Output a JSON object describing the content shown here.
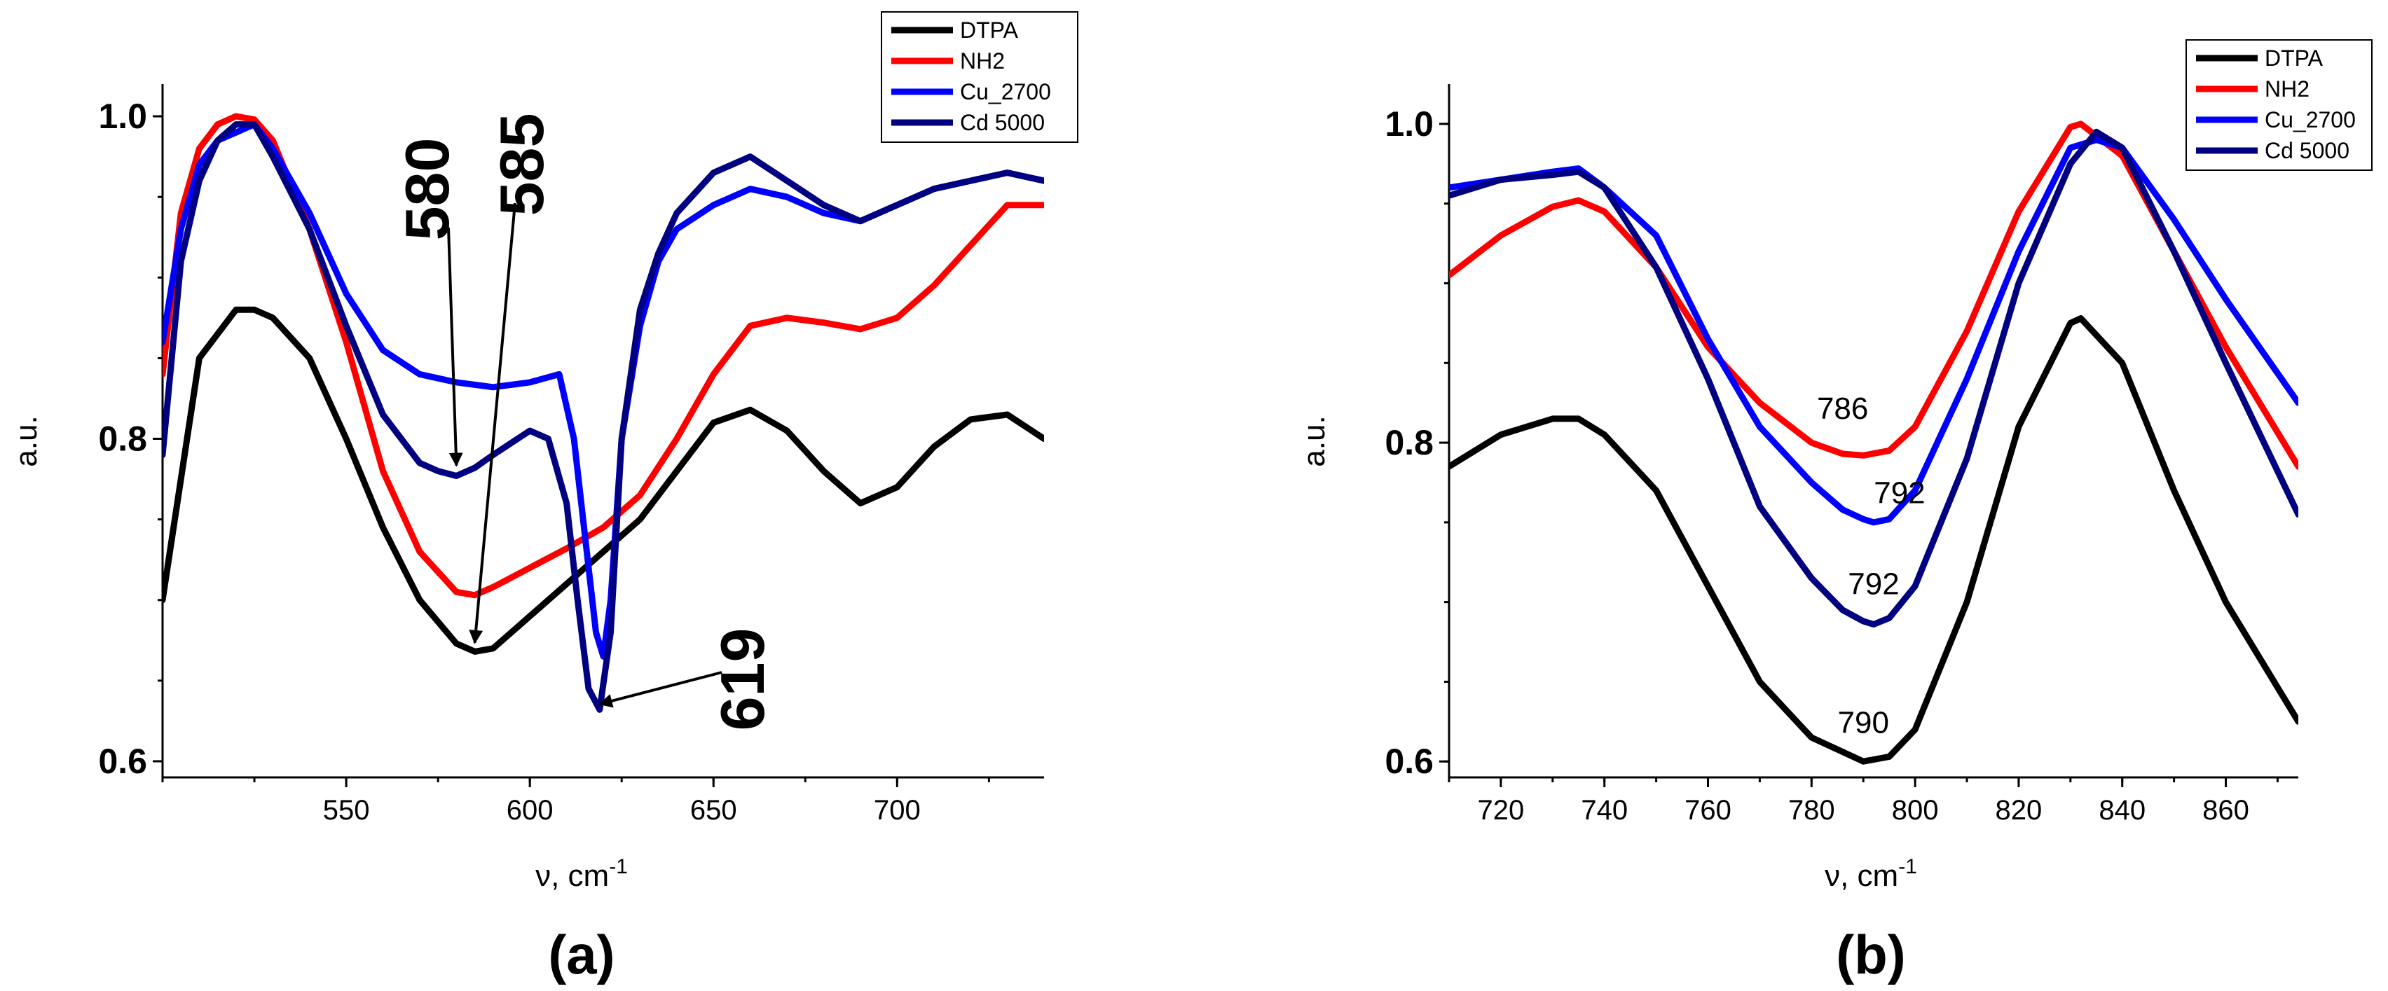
{
  "colors": {
    "DTPA": "#000000",
    "NH2": "#ff0000",
    "Cu_2700": "#0000ff",
    "Cd 5000": "#000080"
  },
  "chart_data": [
    {
      "type": "line",
      "panel": "(a)",
      "xlabel": "ν, cm",
      "xlabel_sup": "-1",
      "ylabel": "a.u.",
      "xlim": [
        500,
        740
      ],
      "ylim": [
        0.59,
        1.02
      ],
      "xticks": [
        550,
        600,
        650,
        700
      ],
      "yticks": [
        0.6,
        0.8,
        1.0
      ],
      "ytick_labels": [
        "0.6",
        "0.8",
        "1.0"
      ],
      "grid": false,
      "legend": {
        "position": "top-right",
        "entries": [
          "DTPA",
          "NH2",
          "Cu_2700",
          "Cd 5000"
        ]
      },
      "series": [
        {
          "name": "DTPA",
          "x": [
            500,
            510,
            520,
            525,
            530,
            540,
            550,
            560,
            570,
            580,
            585,
            590,
            600,
            610,
            620,
            630,
            640,
            650,
            660,
            670,
            680,
            690,
            700,
            710,
            720,
            730,
            740
          ],
          "y": [
            0.7,
            0.85,
            0.88,
            0.88,
            0.875,
            0.85,
            0.8,
            0.745,
            0.7,
            0.673,
            0.668,
            0.67,
            0.69,
            0.71,
            0.73,
            0.75,
            0.78,
            0.81,
            0.818,
            0.805,
            0.78,
            0.76,
            0.77,
            0.795,
            0.812,
            0.815,
            0.8
          ]
        },
        {
          "name": "NH2",
          "x": [
            500,
            505,
            510,
            515,
            520,
            525,
            530,
            540,
            550,
            560,
            570,
            580,
            585,
            590,
            600,
            610,
            620,
            630,
            640,
            650,
            660,
            670,
            680,
            690,
            700,
            710,
            720,
            730,
            740
          ],
          "y": [
            0.84,
            0.94,
            0.98,
            0.995,
            1.0,
            0.998,
            0.985,
            0.93,
            0.86,
            0.78,
            0.73,
            0.705,
            0.703,
            0.708,
            0.72,
            0.732,
            0.745,
            0.765,
            0.8,
            0.84,
            0.87,
            0.875,
            0.872,
            0.868,
            0.875,
            0.895,
            0.92,
            0.945,
            0.945
          ]
        },
        {
          "name": "Cu_2700",
          "x": [
            500,
            505,
            510,
            515,
            520,
            525,
            530,
            540,
            550,
            560,
            570,
            580,
            590,
            600,
            608,
            612,
            615,
            618,
            620,
            622,
            625,
            630,
            635,
            640,
            650,
            660,
            670,
            680,
            690,
            700,
            710,
            720,
            730,
            740
          ],
          "y": [
            0.86,
            0.93,
            0.97,
            0.985,
            0.99,
            0.995,
            0.98,
            0.94,
            0.89,
            0.855,
            0.84,
            0.835,
            0.832,
            0.835,
            0.84,
            0.8,
            0.74,
            0.68,
            0.665,
            0.7,
            0.8,
            0.87,
            0.91,
            0.93,
            0.945,
            0.955,
            0.95,
            0.94,
            0.935,
            0.945,
            0.955,
            0.96,
            0.965,
            0.96
          ]
        },
        {
          "name": "Cd 5000",
          "x": [
            500,
            505,
            510,
            515,
            520,
            525,
            530,
            540,
            550,
            560,
            570,
            575,
            580,
            585,
            590,
            600,
            605,
            610,
            613,
            616,
            619,
            622,
            625,
            630,
            635,
            640,
            650,
            660,
            670,
            680,
            690,
            700,
            710,
            720,
            730,
            740
          ],
          "y": [
            0.79,
            0.91,
            0.96,
            0.985,
            0.995,
            0.995,
            0.975,
            0.93,
            0.87,
            0.815,
            0.785,
            0.78,
            0.777,
            0.782,
            0.79,
            0.805,
            0.8,
            0.76,
            0.7,
            0.645,
            0.632,
            0.68,
            0.8,
            0.88,
            0.915,
            0.94,
            0.965,
            0.975,
            0.96,
            0.945,
            0.935,
            0.945,
            0.955,
            0.96,
            0.965,
            0.96
          ]
        }
      ],
      "annotations": [
        {
          "text": "580",
          "style": "bold-rotated",
          "x": 580,
          "y": 0.78
        },
        {
          "text": "585",
          "style": "bold-rotated",
          "x": 585,
          "y": 0.67
        },
        {
          "text": "619",
          "style": "bold-rotated",
          "x": 619,
          "y": 0.632
        }
      ]
    },
    {
      "type": "line",
      "panel": "(b)",
      "xlabel": "ν, cm",
      "xlabel_sup": "-1",
      "ylabel": "a.u.",
      "xlim": [
        710,
        874
      ],
      "ylim": [
        0.59,
        1.025
      ],
      "xticks": [
        720,
        740,
        760,
        780,
        800,
        820,
        840,
        860
      ],
      "yticks": [
        0.6,
        0.8,
        1.0
      ],
      "ytick_labels": [
        "0.6",
        "0.8",
        "1.0"
      ],
      "grid": false,
      "legend": {
        "position": "top-right",
        "entries": [
          "DTPA",
          "NH2",
          "Cu_2700",
          "Cd 5000"
        ]
      },
      "series": [
        {
          "name": "DTPA",
          "x": [
            710,
            720,
            730,
            735,
            740,
            750,
            760,
            770,
            780,
            790,
            795,
            800,
            810,
            820,
            830,
            832,
            840,
            850,
            860,
            874
          ],
          "y": [
            0.785,
            0.805,
            0.815,
            0.815,
            0.805,
            0.77,
            0.71,
            0.65,
            0.615,
            0.6,
            0.603,
            0.62,
            0.7,
            0.81,
            0.875,
            0.878,
            0.85,
            0.77,
            0.7,
            0.625
          ]
        },
        {
          "name": "NH2",
          "x": [
            710,
            720,
            730,
            735,
            740,
            750,
            760,
            770,
            780,
            786,
            790,
            795,
            800,
            810,
            820,
            830,
            832,
            840,
            850,
            860,
            874
          ],
          "y": [
            0.905,
            0.93,
            0.948,
            0.952,
            0.945,
            0.91,
            0.86,
            0.825,
            0.8,
            0.793,
            0.792,
            0.795,
            0.81,
            0.87,
            0.945,
            0.998,
            1.0,
            0.98,
            0.92,
            0.86,
            0.785
          ]
        },
        {
          "name": "Cu_2700",
          "x": [
            710,
            720,
            730,
            735,
            740,
            750,
            760,
            770,
            780,
            786,
            790,
            792,
            795,
            800,
            810,
            820,
            830,
            835,
            840,
            850,
            860,
            874
          ],
          "y": [
            0.96,
            0.965,
            0.97,
            0.972,
            0.96,
            0.93,
            0.865,
            0.81,
            0.775,
            0.758,
            0.752,
            0.75,
            0.752,
            0.77,
            0.84,
            0.92,
            0.985,
            0.99,
            0.985,
            0.94,
            0.89,
            0.825
          ]
        },
        {
          "name": "Cd 5000",
          "x": [
            710,
            720,
            730,
            735,
            740,
            750,
            760,
            770,
            780,
            786,
            790,
            792,
            795,
            800,
            810,
            820,
            830,
            835,
            840,
            850,
            860,
            874
          ],
          "y": [
            0.955,
            0.965,
            0.968,
            0.97,
            0.96,
            0.91,
            0.84,
            0.76,
            0.715,
            0.695,
            0.688,
            0.686,
            0.69,
            0.71,
            0.79,
            0.9,
            0.975,
            0.995,
            0.985,
            0.92,
            0.85,
            0.755
          ]
        }
      ],
      "annotations": [
        {
          "text": "786",
          "x": 786,
          "y": 0.815
        },
        {
          "text": "792",
          "x": 797,
          "y": 0.762
        },
        {
          "text": "792",
          "x": 792,
          "y": 0.705
        },
        {
          "text": "790",
          "x": 790,
          "y": 0.618
        }
      ]
    }
  ]
}
